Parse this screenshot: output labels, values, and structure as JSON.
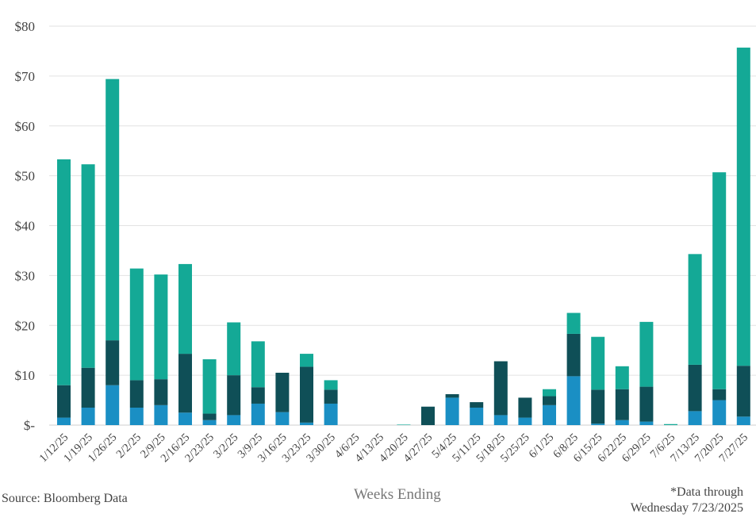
{
  "chart_data": {
    "type": "bar",
    "stacked": true,
    "categories": [
      "1/12/25",
      "1/19/25",
      "1/26/25",
      "2/2/25",
      "2/9/25",
      "2/16/25",
      "2/23/25",
      "3/2/25",
      "3/9/25",
      "3/16/25",
      "3/23/25",
      "3/30/25",
      "4/6/25",
      "4/13/25",
      "4/20/25",
      "4/27/25",
      "5/4/25",
      "5/11/25",
      "5/18/25",
      "5/25/25",
      "6/1/25",
      "6/8/25",
      "6/15/25",
      "6/22/25",
      "6/29/25",
      "7/6/25",
      "7/13/25",
      "7/20/25",
      "7/27/25"
    ],
    "series": [
      {
        "color": "#1a8fc4",
        "values": [
          1.5,
          3.5,
          8.0,
          3.5,
          4.0,
          2.5,
          1.0,
          2.0,
          4.3,
          2.6,
          0.5,
          4.3,
          0,
          0,
          0,
          0,
          5.5,
          3.5,
          2.0,
          1.5,
          4.0,
          9.8,
          0.3,
          1.0,
          0.7,
          0,
          2.8,
          5.0,
          1.7
        ]
      },
      {
        "color": "#0f4f57",
        "values": [
          6.5,
          8.0,
          9.0,
          5.5,
          5.2,
          11.8,
          1.3,
          8.0,
          3.3,
          7.9,
          11.2,
          2.8,
          0,
          0,
          0,
          3.7,
          0.7,
          1.1,
          10.8,
          4.0,
          1.8,
          8.5,
          6.8,
          6.2,
          7.0,
          0,
          9.3,
          2.2,
          10.2
        ]
      },
      {
        "color": "#14a996",
        "values": [
          45.3,
          40.8,
          52.4,
          22.4,
          21.0,
          18.0,
          10.9,
          10.6,
          9.2,
          0,
          2.6,
          1.9,
          0,
          0,
          0.1,
          0,
          0,
          0,
          0,
          0,
          1.4,
          4.2,
          10.6,
          4.6,
          13.0,
          0.2,
          22.2,
          43.5,
          63.8
        ]
      }
    ],
    "yticks": [
      "$-",
      "$10",
      "$20",
      "$30",
      "$40",
      "$50",
      "$60",
      "$70",
      "$80"
    ],
    "ylim": [
      0,
      80
    ],
    "xlabel": "Weeks Ending",
    "grid": true,
    "legend": "none"
  },
  "notes": {
    "source": "Source: Bloomberg Data",
    "data_through_line1": "*Data through",
    "data_through_line2": "Wednesday 7/23/2025"
  }
}
